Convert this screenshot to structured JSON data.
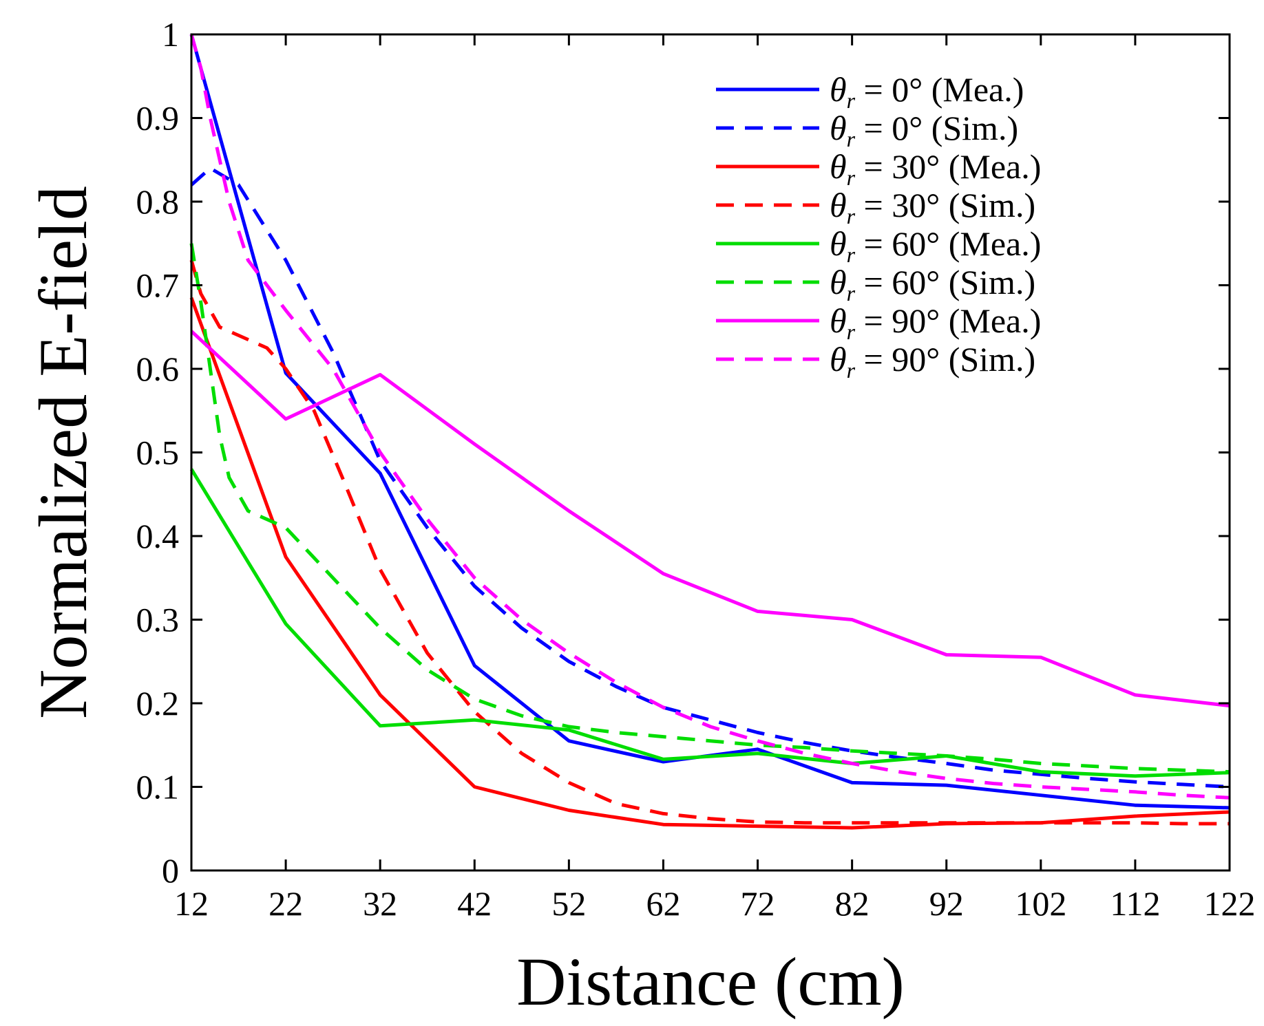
{
  "chart_data": {
    "type": "line",
    "title": "",
    "xlabel": "Distance (cm)",
    "ylabel": "Normalized E-field",
    "xlim": [
      12,
      122
    ],
    "ylim": [
      0,
      1
    ],
    "xticks": [
      12,
      22,
      32,
      42,
      52,
      62,
      72,
      82,
      92,
      102,
      112,
      122
    ],
    "yticks": [
      0,
      0.1,
      0.2,
      0.3,
      0.4,
      0.5,
      0.6,
      0.7,
      0.8,
      0.9,
      1
    ],
    "ytick_labels": [
      "0",
      "0.1",
      "0.2",
      "0.3",
      "0.4",
      "0.5",
      "0.6",
      "0.7",
      "0.8",
      "0.9",
      "1"
    ],
    "grid": false,
    "legend_position": "top-right",
    "series": [
      {
        "name": "θr = 0° (Mea.)",
        "legend_symbol": "θ",
        "legend_sub": "r",
        "legend_rest": " = 0° (Mea.)",
        "color": "#0000ff",
        "dash": "solid",
        "x": [
          12,
          22,
          32,
          42,
          52,
          62,
          72,
          82,
          92,
          102,
          112,
          122
        ],
        "y": [
          1.0,
          0.595,
          0.475,
          0.245,
          0.155,
          0.13,
          0.145,
          0.105,
          0.102,
          0.09,
          0.078,
          0.075
        ]
      },
      {
        "name": "θr = 0° (Sim.)",
        "legend_symbol": "θ",
        "legend_sub": "r",
        "legend_rest": " = 0° (Sim.)",
        "color": "#0000ff",
        "dash": "dashed",
        "x": [
          12,
          14,
          17,
          22,
          27,
          32,
          37,
          42,
          47,
          52,
          57,
          62,
          67,
          72,
          77,
          82,
          87,
          92,
          97,
          102,
          107,
          112,
          117,
          122
        ],
        "y": [
          0.82,
          0.84,
          0.82,
          0.73,
          0.62,
          0.49,
          0.41,
          0.34,
          0.29,
          0.25,
          0.22,
          0.195,
          0.18,
          0.165,
          0.153,
          0.143,
          0.135,
          0.128,
          0.12,
          0.115,
          0.11,
          0.106,
          0.103,
          0.1
        ]
      },
      {
        "name": "θr = 30° (Mea.)",
        "legend_symbol": "θ",
        "legend_sub": "r",
        "legend_rest": " = 30° (Mea.)",
        "color": "#ff0000",
        "dash": "solid",
        "x": [
          12,
          22,
          32,
          42,
          52,
          62,
          72,
          82,
          92,
          102,
          112,
          122
        ],
        "y": [
          0.685,
          0.375,
          0.21,
          0.1,
          0.072,
          0.055,
          0.053,
          0.051,
          0.056,
          0.057,
          0.065,
          0.07
        ]
      },
      {
        "name": "θr = 30° (Sim.)",
        "legend_symbol": "θ",
        "legend_sub": "r",
        "legend_rest": " = 30° (Sim.)",
        "color": "#ff0000",
        "dash": "dashed",
        "x": [
          12,
          13,
          15,
          17,
          20,
          22,
          25,
          28,
          32,
          37,
          42,
          47,
          52,
          57,
          62,
          67,
          72,
          77,
          82,
          87,
          92,
          97,
          102,
          107,
          112,
          117,
          122
        ],
        "y": [
          0.73,
          0.69,
          0.65,
          0.64,
          0.625,
          0.6,
          0.55,
          0.47,
          0.36,
          0.26,
          0.19,
          0.14,
          0.105,
          0.08,
          0.068,
          0.062,
          0.058,
          0.057,
          0.057,
          0.057,
          0.057,
          0.057,
          0.057,
          0.057,
          0.057,
          0.056,
          0.056
        ]
      },
      {
        "name": "θr = 60° (Mea.)",
        "legend_symbol": "θ",
        "legend_sub": "r",
        "legend_rest": " = 60° (Mea.)",
        "color": "#00dd00",
        "dash": "solid",
        "x": [
          12,
          22,
          32,
          42,
          52,
          62,
          72,
          82,
          92,
          102,
          112,
          122
        ],
        "y": [
          0.48,
          0.295,
          0.173,
          0.18,
          0.168,
          0.133,
          0.14,
          0.128,
          0.137,
          0.118,
          0.113,
          0.117
        ]
      },
      {
        "name": "θr = 60° (Sim.)",
        "legend_symbol": "θ",
        "legend_sub": "r",
        "legend_rest": " = 60° (Sim.)",
        "color": "#00dd00",
        "dash": "dashed",
        "x": [
          12,
          13,
          14,
          15,
          16,
          18,
          20,
          22,
          27,
          32,
          37,
          42,
          47,
          52,
          57,
          62,
          67,
          72,
          77,
          82,
          87,
          92,
          97,
          102,
          107,
          112,
          117,
          122
        ],
        "y": [
          0.75,
          0.68,
          0.6,
          0.52,
          0.47,
          0.43,
          0.42,
          0.41,
          0.35,
          0.29,
          0.24,
          0.205,
          0.185,
          0.172,
          0.165,
          0.16,
          0.155,
          0.15,
          0.147,
          0.143,
          0.14,
          0.137,
          0.133,
          0.128,
          0.125,
          0.122,
          0.12,
          0.118
        ]
      },
      {
        "name": "θr = 90° (Mea.)",
        "legend_symbol": "θ",
        "legend_sub": "r",
        "legend_rest": " = 90° (Mea.)",
        "color": "#ff00ff",
        "dash": "solid",
        "x": [
          12,
          22,
          32,
          42,
          52,
          62,
          72,
          82,
          92,
          102,
          112,
          122
        ],
        "y": [
          0.645,
          0.54,
          0.593,
          0.51,
          0.43,
          0.355,
          0.31,
          0.3,
          0.258,
          0.255,
          0.21,
          0.197
        ]
      },
      {
        "name": "θr = 90° (Sim.)",
        "legend_symbol": "θ",
        "legend_sub": "r",
        "legend_rest": " = 90° (Sim.)",
        "color": "#ff00ff",
        "dash": "dashed",
        "x": [
          12,
          13,
          14,
          16,
          18,
          22,
          27,
          32,
          37,
          42,
          47,
          52,
          57,
          62,
          67,
          72,
          77,
          82,
          87,
          92,
          97,
          102,
          107,
          112,
          117,
          122
        ],
        "y": [
          1.0,
          0.96,
          0.9,
          0.8,
          0.73,
          0.67,
          0.6,
          0.5,
          0.42,
          0.35,
          0.3,
          0.26,
          0.225,
          0.195,
          0.172,
          0.155,
          0.14,
          0.128,
          0.118,
          0.11,
          0.104,
          0.1,
          0.097,
          0.094,
          0.09,
          0.087
        ]
      }
    ]
  }
}
